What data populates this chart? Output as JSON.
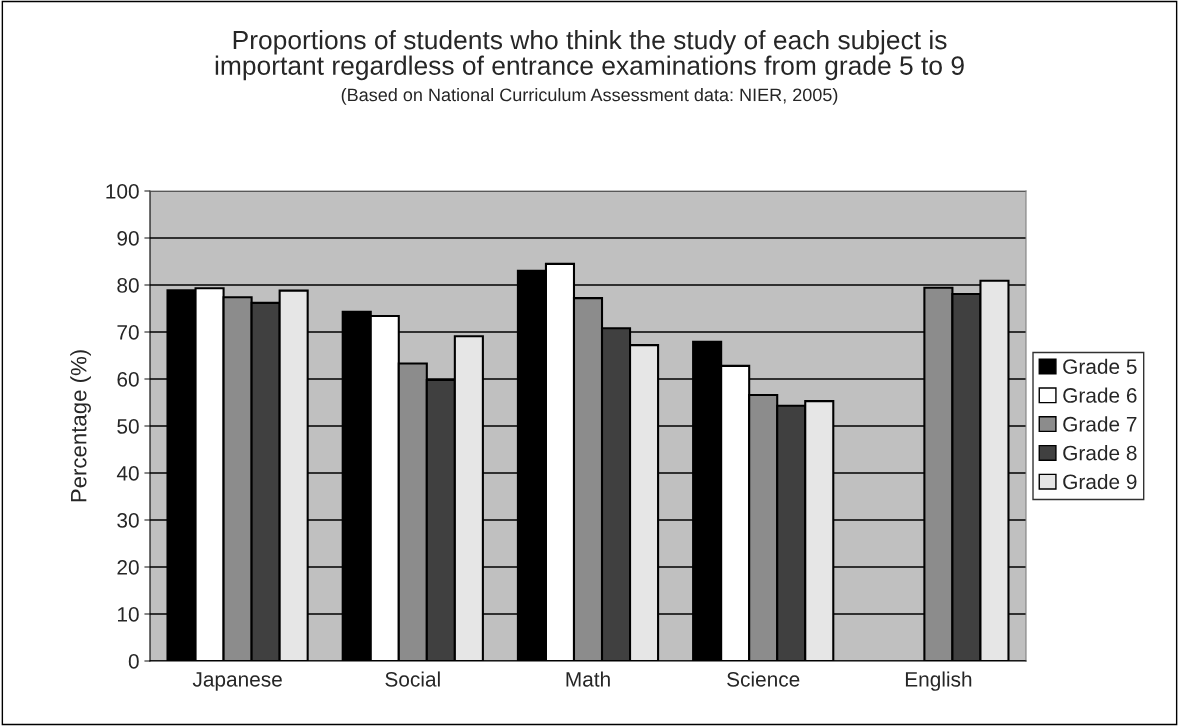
{
  "chart_data": {
    "type": "bar",
    "title": "Proportions of students who think the study of each subject is\nimportant regardless of entrance examinations from grade 5 to 9",
    "subtitle": "(Based on National Curriculum Assessment data: NIER, 2005)",
    "ylabel": "Percentage (%)",
    "categories": [
      "Japanese",
      "Social",
      "Math",
      "Science",
      "English"
    ],
    "series": [
      {
        "name": "Grade 5",
        "color": "#000000",
        "values": [
          78.9,
          74.3,
          83.0,
          67.9,
          null
        ]
      },
      {
        "name": "Grade 6",
        "color": "#ffffff",
        "values": [
          79.3,
          73.4,
          84.5,
          62.8,
          null
        ]
      },
      {
        "name": "Grade 7",
        "color": "#8c8c8c",
        "values": [
          77.4,
          63.3,
          77.2,
          56.6,
          79.4
        ]
      },
      {
        "name": "Grade 8",
        "color": "#404040",
        "values": [
          76.2,
          59.8,
          70.8,
          54.3,
          78.1
        ]
      },
      {
        "name": "Grade 9",
        "color": "#e6e6e6",
        "values": [
          78.8,
          69.1,
          67.2,
          55.3,
          80.9
        ]
      }
    ],
    "ylim": [
      0,
      100
    ],
    "yticks": [
      0,
      10,
      20,
      30,
      40,
      50,
      60,
      70,
      80,
      90,
      100
    ],
    "grid": "y",
    "legend": "right"
  }
}
